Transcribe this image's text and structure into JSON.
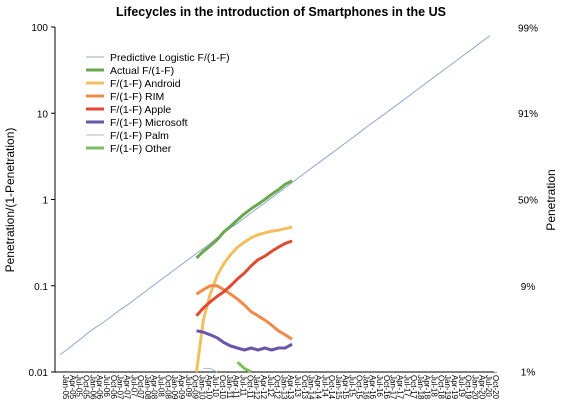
{
  "chart_data": {
    "type": "line",
    "title": "Lifecycles in the introduction of Smartphones in the US",
    "y_label": "Penetration/(1-Penetration)",
    "y2_label": "Penetration",
    "yscale": "log",
    "ylim": [
      0.01,
      100
    ],
    "yticks": [
      0.01,
      0.1,
      1,
      10,
      100
    ],
    "y2scale": "logit",
    "y2lim": [
      0.99,
      99.01
    ],
    "y2ticks": [
      {
        "value": 1,
        "label": "1%"
      },
      {
        "value": 9,
        "label": "9%"
      },
      {
        "value": 50,
        "label": "50%"
      },
      {
        "value": 91,
        "label": "91%"
      },
      {
        "value": 99,
        "label": "99%"
      }
    ],
    "legend": "upper left",
    "categories": [
      "Jan-05",
      "Apr-05",
      "Jul-05",
      "Oct-05",
      "Jan-06",
      "Apr-06",
      "Jul-06",
      "Oct-06",
      "Jan-07",
      "Apr-07",
      "Jul-07",
      "Oct-07",
      "Jan-08",
      "Apr-08",
      "Jul-08",
      "Oct-08",
      "Jan-09",
      "Apr-09",
      "Jul-09",
      "Oct-09",
      "Jan-10",
      "Apr-10",
      "Jul-10",
      "Oct-10",
      "Jan-11",
      "Apr-11",
      "Jul-11",
      "Oct-11",
      "Jan-12",
      "Apr-12",
      "Jul-12",
      "Oct-12",
      "Jan-13",
      "Apr-13",
      "Jul-13",
      "Oct-13",
      "Jan-14",
      "Apr-14",
      "Jul-14",
      "Oct-14",
      "Jan-15",
      "Apr-15",
      "Jul-15",
      "Oct-15",
      "Jan-16",
      "Apr-16",
      "Jul-16",
      "Oct-16",
      "Jan-17",
      "Apr-17",
      "Jul-17",
      "Oct-17",
      "Jan-18",
      "Apr-18",
      "Jul-18",
      "Oct-18",
      "Jan-19",
      "Apr-19",
      "Jul-19",
      "Oct-19",
      "Jan-20",
      "Apr-20",
      "Jul-20",
      "Oct-20"
    ],
    "series": [
      {
        "name": "Predictive Logistic F/(1-F)",
        "color": "#8fa8cc",
        "width": 1,
        "values": [
          0.016,
          0.018,
          0.021,
          0.024,
          0.028,
          0.032,
          0.036,
          0.041,
          0.047,
          0.054,
          0.061,
          0.07,
          0.08,
          0.092,
          0.105,
          0.121,
          0.138,
          0.158,
          0.181,
          0.207,
          0.237,
          0.27,
          0.31,
          0.36,
          0.41,
          0.47,
          0.53,
          0.61,
          0.7,
          0.8,
          0.91,
          1.05,
          1.2,
          1.37,
          1.57,
          1.8,
          2.06,
          2.36,
          2.7,
          3.09,
          3.53,
          4.05,
          4.63,
          5.3,
          6.1,
          7,
          8,
          9.1,
          10.4,
          11.9,
          13.6,
          15.6,
          17.9,
          20.5,
          23.5,
          26.9,
          30.8,
          35.2,
          40.3,
          46.2,
          52.9,
          60.6,
          69.4,
          79.5
        ]
      },
      {
        "name": "Actual F/(1-F)",
        "color": "#6aa84f",
        "width": 3,
        "values": [
          null,
          null,
          null,
          null,
          null,
          null,
          null,
          null,
          null,
          null,
          null,
          null,
          null,
          null,
          null,
          null,
          null,
          null,
          null,
          null,
          0.21,
          0.25,
          0.29,
          0.34,
          0.42,
          0.49,
          0.58,
          0.68,
          0.78,
          0.88,
          1,
          1.15,
          1.3,
          1.5,
          1.65,
          null,
          null,
          null,
          null,
          null,
          null,
          null,
          null,
          null,
          null,
          null,
          null,
          null,
          null,
          null,
          null,
          null,
          null,
          null,
          null,
          null,
          null,
          null,
          null,
          null,
          null,
          null,
          null,
          null
        ]
      },
      {
        "name": "F/(1-F) Android",
        "color": "#f0c060",
        "width": 3,
        "values": [
          null,
          null,
          null,
          null,
          null,
          null,
          null,
          null,
          null,
          null,
          null,
          null,
          null,
          null,
          null,
          null,
          null,
          null,
          null,
          null,
          0.01,
          0.04,
          0.08,
          0.13,
          0.18,
          0.23,
          0.28,
          0.32,
          0.36,
          0.39,
          0.41,
          0.43,
          0.44,
          0.46,
          0.48,
          null,
          null,
          null,
          null,
          null,
          null,
          null,
          null,
          null,
          null,
          null,
          null,
          null,
          null,
          null,
          null,
          null,
          null,
          null,
          null,
          null,
          null,
          null,
          null,
          null,
          null,
          null,
          null,
          null
        ]
      },
      {
        "name": "F/(1-F) RIM",
        "color": "#f08a4b",
        "width": 3,
        "values": [
          null,
          null,
          null,
          null,
          null,
          null,
          null,
          null,
          null,
          null,
          null,
          null,
          null,
          null,
          null,
          null,
          null,
          null,
          null,
          null,
          0.08,
          0.09,
          0.1,
          0.1,
          0.09,
          0.08,
          0.07,
          0.06,
          0.05,
          0.045,
          0.04,
          0.035,
          0.03,
          0.027,
          0.024,
          null,
          null,
          null,
          null,
          null,
          null,
          null,
          null,
          null,
          null,
          null,
          null,
          null,
          null,
          null,
          null,
          null,
          null,
          null,
          null,
          null,
          null,
          null,
          null,
          null,
          null,
          null,
          null,
          null
        ]
      },
      {
        "name": "F/(1-F) Apple",
        "color": "#e04a30",
        "width": 3,
        "values": [
          null,
          null,
          null,
          null,
          null,
          null,
          null,
          null,
          null,
          null,
          null,
          null,
          null,
          null,
          null,
          null,
          null,
          null,
          null,
          null,
          0.045,
          0.055,
          0.065,
          0.075,
          0.085,
          0.1,
          0.12,
          0.14,
          0.17,
          0.2,
          0.22,
          0.25,
          0.28,
          0.31,
          0.33,
          null,
          null,
          null,
          null,
          null,
          null,
          null,
          null,
          null,
          null,
          null,
          null,
          null,
          null,
          null,
          null,
          null,
          null,
          null,
          null,
          null,
          null,
          null,
          null,
          null,
          null,
          null,
          null,
          null
        ]
      },
      {
        "name": "F/(1-F) Microsoft",
        "color": "#6b55a8",
        "width": 3,
        "values": [
          null,
          null,
          null,
          null,
          null,
          null,
          null,
          null,
          null,
          null,
          null,
          null,
          null,
          null,
          null,
          null,
          null,
          null,
          null,
          null,
          0.03,
          0.029,
          0.027,
          0.025,
          0.022,
          0.02,
          0.019,
          0.018,
          0.019,
          0.018,
          0.019,
          0.018,
          0.019,
          0.019,
          0.021,
          null,
          null,
          null,
          null,
          null,
          null,
          null,
          null,
          null,
          null,
          null,
          null,
          null,
          null,
          null,
          null,
          null,
          null,
          null,
          null,
          null,
          null,
          null,
          null,
          null,
          null,
          null,
          null,
          null
        ]
      },
      {
        "name": "F/(1-F) Palm",
        "color": "#a8b8d8",
        "width": 1,
        "values": [
          null,
          null,
          null,
          null,
          null,
          null,
          null,
          null,
          null,
          null,
          null,
          null,
          null,
          null,
          null,
          null,
          null,
          null,
          null,
          null,
          null,
          0.011,
          0.011,
          0.01,
          null,
          null,
          null,
          null,
          null,
          null,
          null,
          null,
          null,
          null,
          null,
          null,
          null,
          null,
          null,
          null,
          null,
          null,
          null,
          null,
          null,
          null,
          null,
          null,
          null,
          null,
          null,
          null,
          null,
          null,
          null,
          null,
          null,
          null,
          null,
          null,
          null,
          null,
          null,
          null
        ]
      },
      {
        "name": "F/(1-F) Other",
        "color": "#7bc060",
        "width": 3,
        "values": [
          null,
          null,
          null,
          null,
          null,
          null,
          null,
          null,
          null,
          null,
          null,
          null,
          null,
          null,
          null,
          null,
          null,
          null,
          null,
          null,
          null,
          null,
          null,
          null,
          null,
          null,
          0.013,
          0.011,
          0.01,
          null,
          null,
          null,
          null,
          null,
          null,
          null,
          null,
          null,
          null,
          null,
          null,
          null,
          null,
          null,
          null,
          null,
          null,
          null,
          null,
          null,
          null,
          null,
          null,
          null,
          null,
          null,
          null,
          null,
          null,
          null,
          null,
          null,
          null,
          null
        ]
      }
    ]
  }
}
